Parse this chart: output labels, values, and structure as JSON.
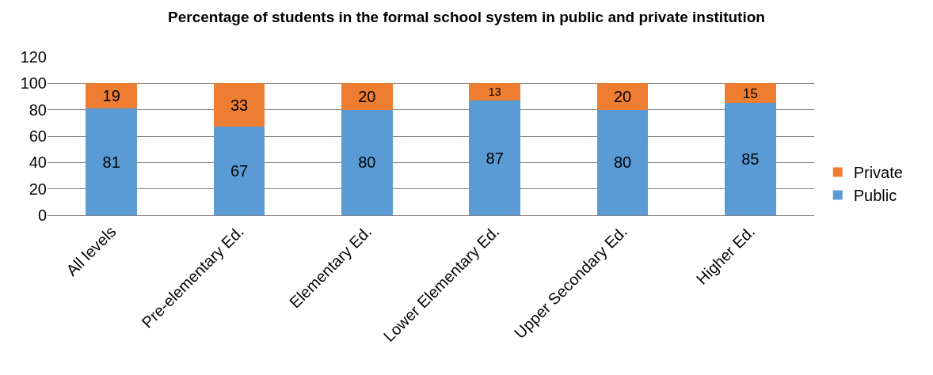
{
  "chart_data": {
    "type": "bar",
    "title": "Percentage of students in the formal school system in public and private institution",
    "categories": [
      "All levels",
      "Pre-elementary Ed.",
      "Elementary Ed.",
      "Lower Elementary Ed.",
      "Upper Secondary Ed.",
      "Higher Ed."
    ],
    "series": [
      {
        "name": "Public",
        "color": "#5b9bd5",
        "values": [
          81,
          67,
          80,
          87,
          80,
          85
        ]
      },
      {
        "name": "Private",
        "color": "#ed7d31",
        "values": [
          19,
          33,
          20,
          13,
          20,
          15
        ]
      }
    ],
    "stacked": true,
    "data_labels": true,
    "ylim": [
      0,
      120
    ],
    "yticks": [
      0,
      20,
      40,
      60,
      80,
      100,
      120
    ],
    "grid": "y",
    "legend": "right"
  }
}
